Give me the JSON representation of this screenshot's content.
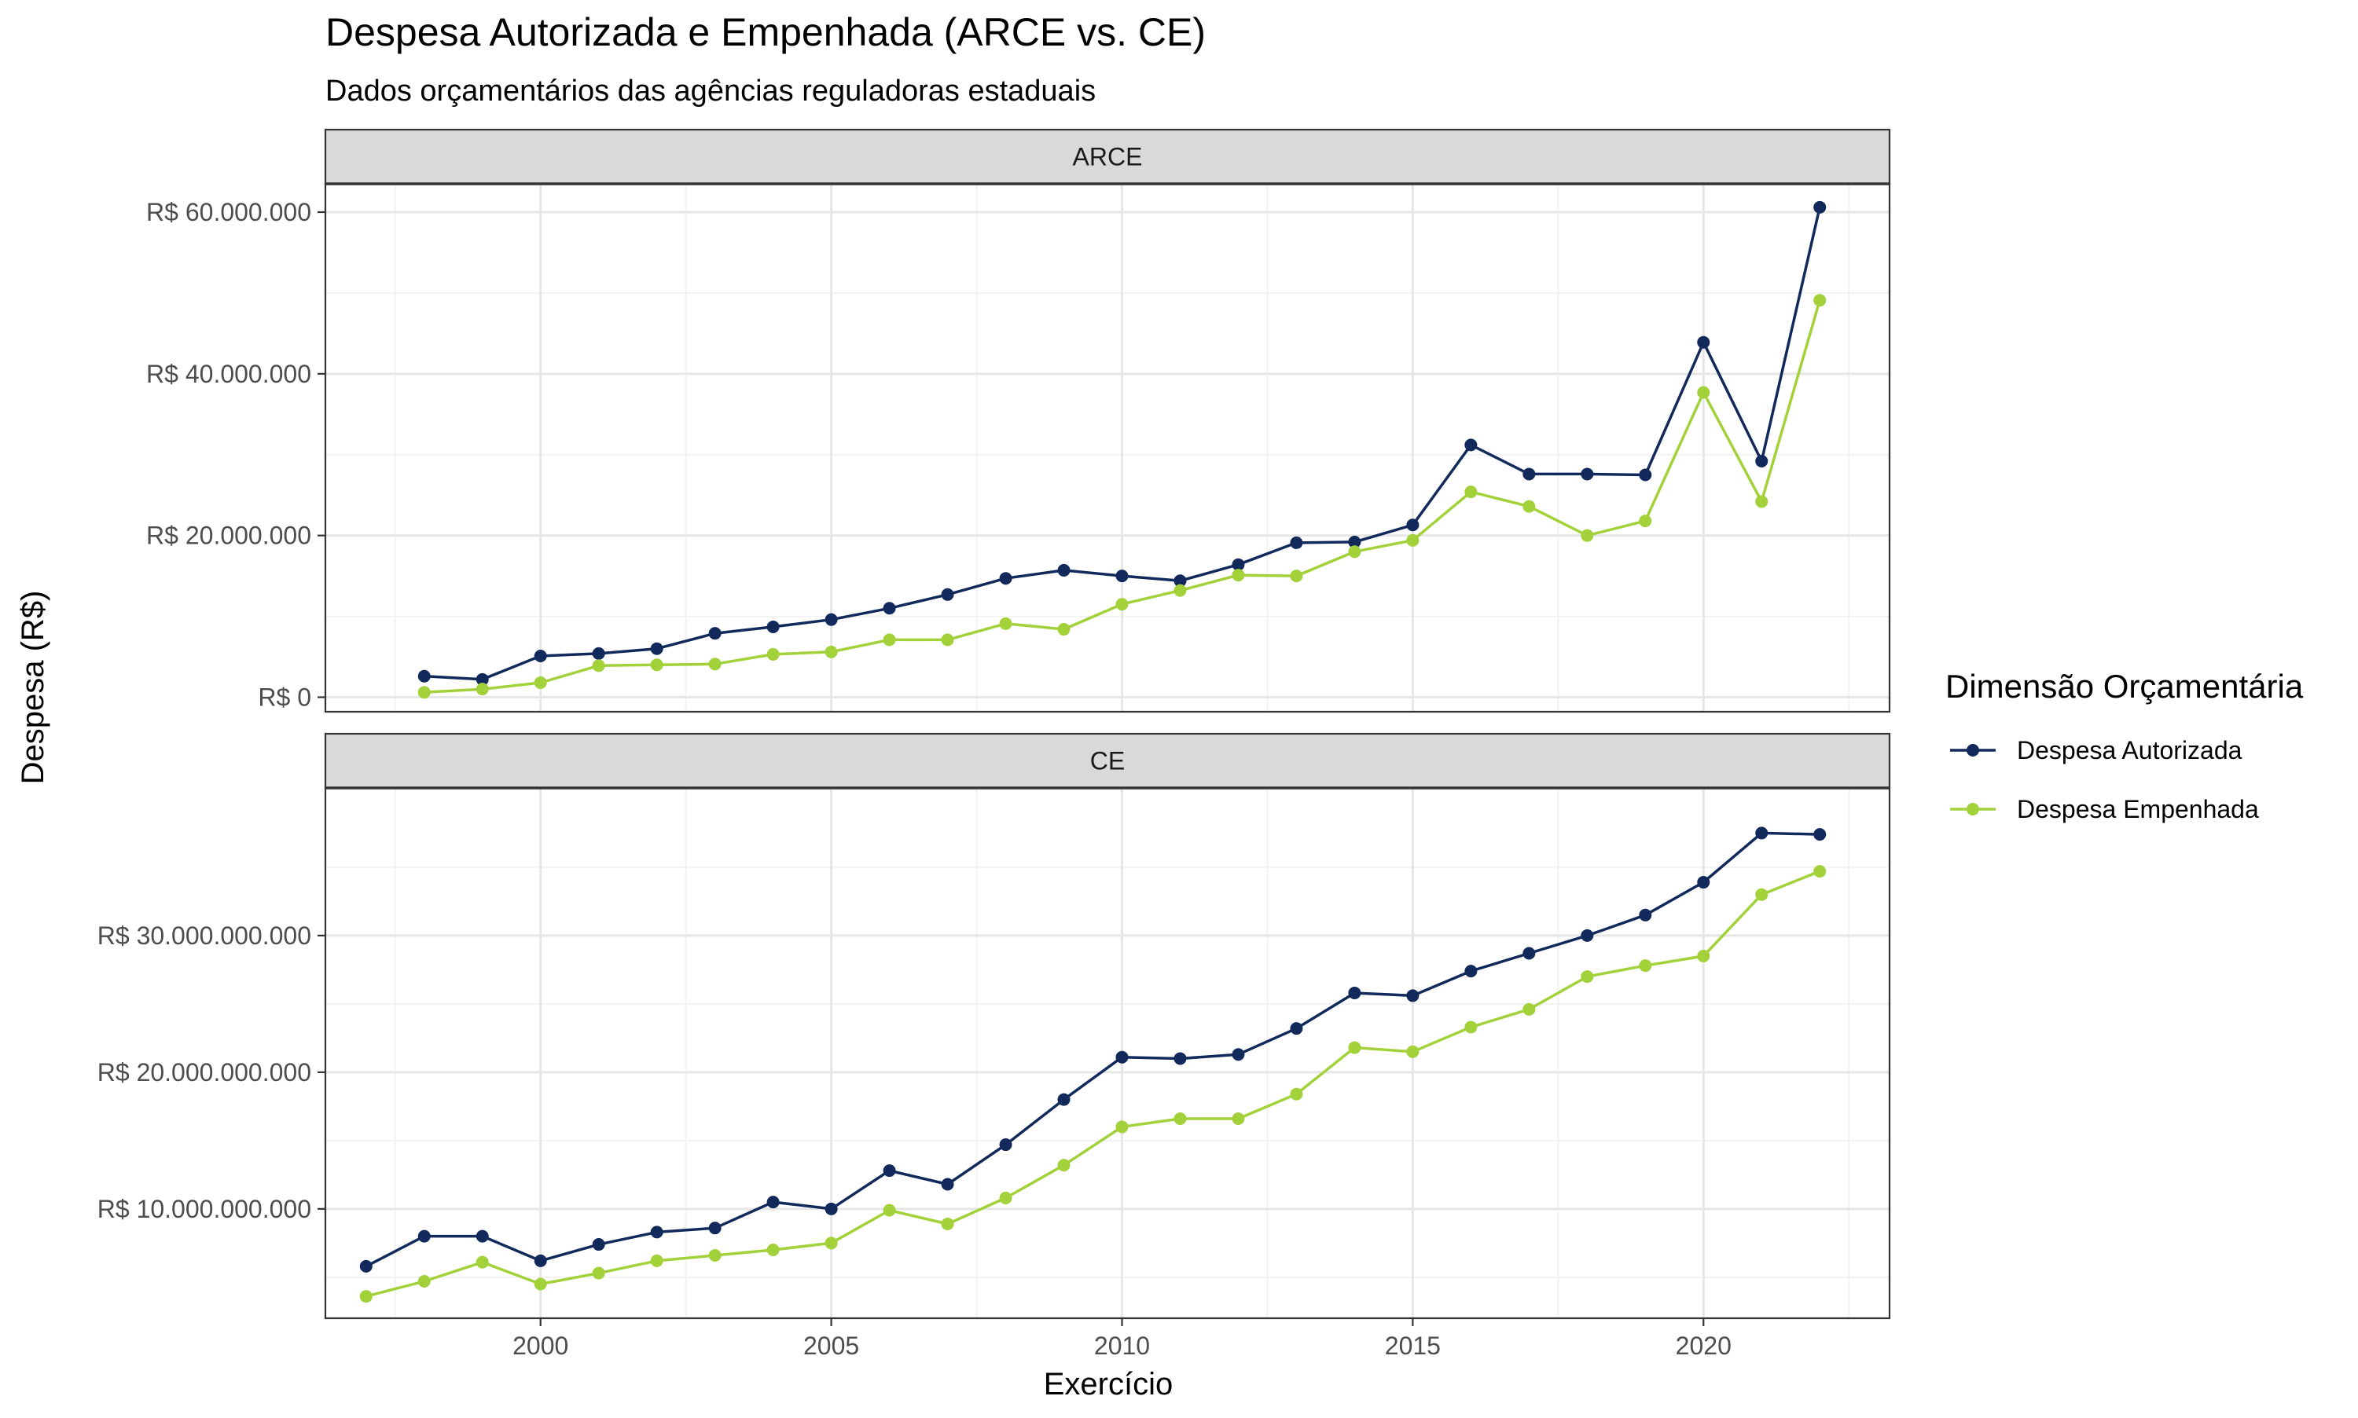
{
  "chart_data": {
    "type": "line",
    "title": "Despesa Autorizada e Empenhada (ARCE vs. CE)",
    "subtitle": "Dados orçamentários das agências reguladoras estaduais",
    "xlabel": "Exercício",
    "ylabel": "Despesa (R$)",
    "x_ticks": [
      2000,
      2005,
      2010,
      2015,
      2020
    ],
    "x_range": [
      1996.3,
      2023.2
    ],
    "grid": true,
    "legend": {
      "title": "Dimensão Orçamentária",
      "position": "right",
      "entries": [
        {
          "name": "Despesa Autorizada",
          "color": "#12295c"
        },
        {
          "name": "Despesa Empenhada",
          "color": "#a3d13a"
        }
      ]
    },
    "panels": [
      {
        "strip": "ARCE",
        "y_ticks": [
          0,
          20000000,
          40000000,
          60000000
        ],
        "y_tick_labels": [
          "R$ 0",
          "R$ 20.000.000",
          "R$ 40.000.000",
          "R$ 60.000.000"
        ],
        "y_range": [
          -1800000,
          63500000
        ],
        "series": [
          {
            "name": "Despesa Autorizada",
            "x": [
              1998,
              1999,
              2000,
              2001,
              2002,
              2003,
              2004,
              2005,
              2006,
              2007,
              2008,
              2009,
              2010,
              2011,
              2012,
              2013,
              2014,
              2015,
              2016,
              2017,
              2018,
              2019,
              2020,
              2021,
              2022
            ],
            "y": [
              2600000,
              2200000,
              5100000,
              5400000,
              6000000,
              7900000,
              8700000,
              9600000,
              11000000,
              12700000,
              14700000,
              15700000,
              15000000,
              14400000,
              16400000,
              19100000,
              19200000,
              21300000,
              31200000,
              27600000,
              27600000,
              27500000,
              43900000,
              29200000,
              60600000
            ]
          },
          {
            "name": "Despesa Empenhada",
            "x": [
              1998,
              1999,
              2000,
              2001,
              2002,
              2003,
              2004,
              2005,
              2006,
              2007,
              2008,
              2009,
              2010,
              2011,
              2012,
              2013,
              2014,
              2015,
              2016,
              2017,
              2018,
              2019,
              2020,
              2021,
              2022
            ],
            "y": [
              600000,
              1000000,
              1800000,
              3900000,
              4000000,
              4100000,
              5300000,
              5600000,
              7100000,
              7100000,
              9100000,
              8400000,
              11500000,
              13200000,
              15100000,
              15000000,
              18000000,
              19400000,
              25400000,
              23600000,
              20000000,
              21800000,
              37700000,
              24200000,
              49100000
            ]
          }
        ]
      },
      {
        "strip": "CE",
        "y_ticks": [
          10000000000,
          20000000000,
          30000000000
        ],
        "y_tick_labels": [
          "R$ 10.000.000.000",
          "R$ 20.000.000.000",
          "R$ 30.000.000.000"
        ],
        "y_range": [
          2000000000,
          40800000000
        ],
        "series": [
          {
            "name": "Despesa Autorizada",
            "x": [
              1997,
              1998,
              1999,
              2000,
              2001,
              2002,
              2003,
              2004,
              2005,
              2006,
              2007,
              2008,
              2009,
              2010,
              2011,
              2012,
              2013,
              2014,
              2015,
              2016,
              2017,
              2018,
              2019,
              2020,
              2021,
              2022
            ],
            "y": [
              5800000000,
              8000000000,
              8000000000,
              6200000000,
              7400000000,
              8300000000,
              8600000000,
              10500000000,
              10000000000,
              12800000000,
              11800000000,
              14700000000,
              18000000000,
              21100000000,
              21000000000,
              21300000000,
              23200000000,
              25800000000,
              25600000000,
              27400000000,
              28700000000,
              30000000000,
              31500000000,
              33900000000,
              37500000000,
              37400000000
            ]
          },
          {
            "name": "Despesa Empenhada",
            "x": [
              1997,
              1998,
              1999,
              2000,
              2001,
              2002,
              2003,
              2004,
              2005,
              2006,
              2007,
              2008,
              2009,
              2010,
              2011,
              2012,
              2013,
              2014,
              2015,
              2016,
              2017,
              2018,
              2019,
              2020,
              2021,
              2022
            ],
            "y": [
              3600000000,
              4700000000,
              6100000000,
              4500000000,
              5300000000,
              6200000000,
              6600000000,
              7000000000,
              7500000000,
              9900000000,
              8900000000,
              10800000000,
              13200000000,
              16000000000,
              16600000000,
              16600000000,
              18400000000,
              21800000000,
              21500000000,
              23300000000,
              24600000000,
              27000000000,
              27800000000,
              28500000000,
              33000000000,
              34700000000
            ]
          }
        ]
      }
    ]
  }
}
